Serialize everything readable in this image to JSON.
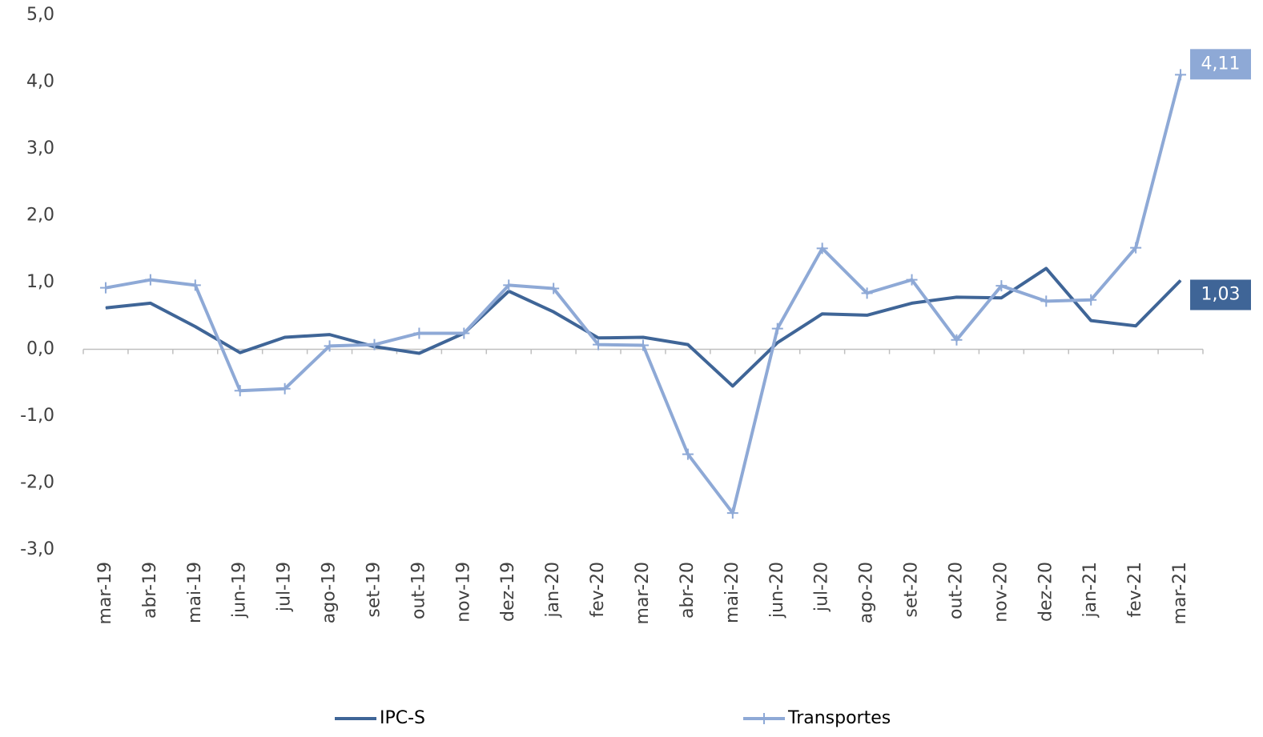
{
  "chart_data": {
    "type": "line",
    "categories": [
      "mar-19",
      "abr-19",
      "mai-19",
      "jun-19",
      "jul-19",
      "ago-19",
      "set-19",
      "out-19",
      "nov-19",
      "dez-19",
      "jan-20",
      "fev-20",
      "mar-20",
      "abr-20",
      "mai-20",
      "jun-20",
      "jul-20",
      "ago-20",
      "set-20",
      "out-20",
      "nov-20",
      "dez-20",
      "jan-21",
      "fev-21",
      "mar-21"
    ],
    "series": [
      {
        "name": "IPC-S",
        "color": "#3f6597",
        "marker": "none",
        "values": [
          0.62,
          0.69,
          0.34,
          -0.05,
          0.18,
          0.22,
          0.04,
          -0.06,
          0.24,
          0.87,
          0.56,
          0.17,
          0.18,
          0.07,
          -0.55,
          0.1,
          0.53,
          0.51,
          0.69,
          0.78,
          0.77,
          1.21,
          0.43,
          0.35,
          1.03
        ],
        "value_labels": [
          null,
          null,
          null,
          null,
          null,
          null,
          null,
          null,
          null,
          null,
          null,
          null,
          null,
          null,
          null,
          null,
          null,
          null,
          null,
          null,
          null,
          null,
          null,
          null,
          "1,03"
        ]
      },
      {
        "name": "Transportes",
        "color": "#8ea9d6",
        "marker": "plus",
        "values": [
          0.92,
          1.04,
          0.96,
          -0.62,
          -0.59,
          0.05,
          0.07,
          0.24,
          0.24,
          0.96,
          0.91,
          0.07,
          0.06,
          -1.57,
          -2.45,
          0.31,
          1.51,
          0.84,
          1.04,
          0.14,
          0.95,
          0.72,
          0.74,
          1.52,
          4.11
        ],
        "value_labels": [
          null,
          null,
          null,
          null,
          null,
          null,
          null,
          null,
          null,
          null,
          null,
          null,
          null,
          null,
          null,
          null,
          null,
          null,
          null,
          null,
          null,
          null,
          null,
          null,
          "4,11"
        ]
      }
    ],
    "ylim": [
      -3,
      5
    ],
    "yticks": [
      {
        "value": -3,
        "label": "-3,0"
      },
      {
        "value": -2,
        "label": "-2,0"
      },
      {
        "value": -1,
        "label": "-1,0"
      },
      {
        "value": 0,
        "label": "0,0"
      },
      {
        "value": 1,
        "label": "1,0"
      },
      {
        "value": 2,
        "label": "2,0"
      },
      {
        "value": 3,
        "label": "3,0"
      },
      {
        "value": 4,
        "label": "4,0"
      },
      {
        "value": 5,
        "label": "5,0"
      }
    ],
    "grid": false,
    "legend": "bottom"
  }
}
